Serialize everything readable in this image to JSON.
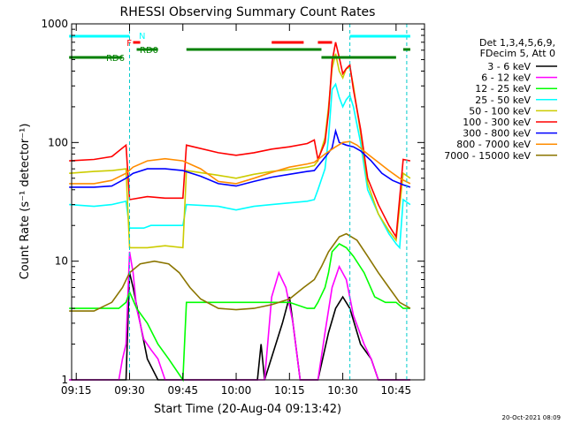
{
  "chart_data": {
    "type": "line",
    "title": "RHESSI Observing Summary Count Rates",
    "xlabel": "Start Time (20-Aug-04 09:13:42)",
    "ylabel": "Count Rate (s⁻¹ detector⁻¹)",
    "y_scale": "log",
    "ylim": [
      1,
      1000
    ],
    "xlim": [
      "09:13:42",
      "10:53:00"
    ],
    "x_ticks": [
      "09:15",
      "09:30",
      "09:45",
      "10:00",
      "10:15",
      "10:30",
      "10:45"
    ],
    "y_ticks": [
      "1",
      "10",
      "100",
      "1000"
    ],
    "footer_date": "20-Oct-2021 08:09",
    "legend_header": [
      "Det 1,3,4,5,6,9,",
      "FDecim 5, Att 0"
    ],
    "legend_position": "right",
    "series": [
      {
        "name": "3 - 6 keV",
        "color": "#000000",
        "points": [
          [
            "09:13",
            "1"
          ],
          [
            "09:29",
            "1"
          ],
          [
            "09:30",
            "8"
          ],
          [
            "09:31",
            "6"
          ],
          [
            "09:33",
            "3"
          ],
          [
            "09:35",
            "1.5"
          ],
          [
            "09:38",
            "1"
          ],
          [
            "10:06",
            "1"
          ],
          [
            "10:07",
            "2"
          ],
          [
            "10:08",
            "1"
          ],
          [
            "10:13",
            "3"
          ],
          [
            "10:15",
            "5"
          ],
          [
            "10:16",
            "3"
          ],
          [
            "10:18",
            "1"
          ],
          [
            "10:23",
            "1"
          ],
          [
            "10:26",
            "2.5"
          ],
          [
            "10:28",
            "4"
          ],
          [
            "10:30",
            "5"
          ],
          [
            "10:32",
            "4"
          ],
          [
            "10:35",
            "2"
          ],
          [
            "10:38",
            "1.5"
          ],
          [
            "10:40",
            "1"
          ],
          [
            "10:49",
            "1"
          ]
        ]
      },
      {
        "name": "6 - 12 keV",
        "color": "#ff00ff",
        "points": [
          [
            "09:13",
            "1"
          ],
          [
            "09:27",
            "1"
          ],
          [
            "09:28",
            "1.5"
          ],
          [
            "09:29",
            "2"
          ],
          [
            "09:30",
            "12"
          ],
          [
            "09:31",
            "8"
          ],
          [
            "09:32",
            "4"
          ],
          [
            "09:34",
            "2.2"
          ],
          [
            "09:36",
            "1.8"
          ],
          [
            "09:38",
            "1.5"
          ],
          [
            "09:40",
            "1"
          ],
          [
            "10:08",
            "1"
          ],
          [
            "10:10",
            "5"
          ],
          [
            "10:12",
            "8"
          ],
          [
            "10:14",
            "6"
          ],
          [
            "10:16",
            "3"
          ],
          [
            "10:18",
            "1"
          ],
          [
            "10:23",
            "1"
          ],
          [
            "10:25",
            "2.5"
          ],
          [
            "10:27",
            "6"
          ],
          [
            "10:29",
            "9"
          ],
          [
            "10:31",
            "7"
          ],
          [
            "10:33",
            "3.5"
          ],
          [
            "10:36",
            "2"
          ],
          [
            "10:38",
            "1.5"
          ],
          [
            "10:40",
            "1"
          ],
          [
            "10:49",
            "1"
          ]
        ]
      },
      {
        "name": "12 - 25 keV",
        "color": "#00ff00",
        "points": [
          [
            "09:13",
            "4"
          ],
          [
            "09:27",
            "4"
          ],
          [
            "09:29",
            "4.5"
          ],
          [
            "09:30",
            "5.5"
          ],
          [
            "09:32",
            "4"
          ],
          [
            "09:35",
            "3"
          ],
          [
            "09:38",
            "2"
          ],
          [
            "09:41",
            "1.5"
          ],
          [
            "09:45",
            "1"
          ],
          [
            "09:46",
            "4.5"
          ],
          [
            "10:05",
            "4.5"
          ],
          [
            "10:15",
            "4.5"
          ],
          [
            "10:20",
            "4"
          ],
          [
            "10:22",
            "4"
          ],
          [
            "10:23",
            "4.5"
          ],
          [
            "10:25",
            "6"
          ],
          [
            "10:26",
            "8"
          ],
          [
            "10:27",
            "12"
          ],
          [
            "10:29",
            "14"
          ],
          [
            "10:31",
            "13"
          ],
          [
            "10:33",
            "11"
          ],
          [
            "10:36",
            "8"
          ],
          [
            "10:39",
            "5"
          ],
          [
            "10:42",
            "4.5"
          ],
          [
            "10:45",
            "4.5"
          ],
          [
            "10:47",
            "4"
          ],
          [
            "10:49",
            "4"
          ]
        ]
      },
      {
        "name": "25 - 50 keV",
        "color": "#00ffff",
        "points": [
          [
            "09:13",
            "30"
          ],
          [
            "09:20",
            "29"
          ],
          [
            "09:25",
            "30"
          ],
          [
            "09:29",
            "32"
          ],
          [
            "09:30",
            "19"
          ],
          [
            "09:34",
            "19"
          ],
          [
            "09:36",
            "20"
          ],
          [
            "09:45",
            "20"
          ],
          [
            "09:46",
            "30"
          ],
          [
            "09:55",
            "29"
          ],
          [
            "10:00",
            "27"
          ],
          [
            "10:05",
            "29"
          ],
          [
            "10:10",
            "30"
          ],
          [
            "10:15",
            "31"
          ],
          [
            "10:20",
            "32"
          ],
          [
            "10:22",
            "33"
          ],
          [
            "10:23",
            "40"
          ],
          [
            "10:25",
            "60"
          ],
          [
            "10:26",
            "110"
          ],
          [
            "10:27",
            "280"
          ],
          [
            "10:28",
            "310"
          ],
          [
            "10:29",
            "240"
          ],
          [
            "10:30",
            "200"
          ],
          [
            "10:31",
            "230"
          ],
          [
            "10:32",
            "250"
          ],
          [
            "10:33",
            "200"
          ],
          [
            "10:35",
            "100"
          ],
          [
            "10:37",
            "40"
          ],
          [
            "10:40",
            "25"
          ],
          [
            "10:43",
            "17"
          ],
          [
            "10:45",
            "14"
          ],
          [
            "10:46",
            "13"
          ],
          [
            "10:47",
            "33"
          ],
          [
            "10:49",
            "30"
          ]
        ]
      },
      {
        "name": "50 - 100 keV",
        "color": "#cccc00",
        "points": [
          [
            "09:13",
            "55"
          ],
          [
            "09:20",
            "57"
          ],
          [
            "09:25",
            "58"
          ],
          [
            "09:29",
            "60"
          ],
          [
            "09:30",
            "13"
          ],
          [
            "09:35",
            "13"
          ],
          [
            "09:40",
            "13.5"
          ],
          [
            "09:45",
            "13"
          ],
          [
            "09:46",
            "58"
          ],
          [
            "09:55",
            "53"
          ],
          [
            "10:00",
            "50"
          ],
          [
            "10:05",
            "54"
          ],
          [
            "10:10",
            "57"
          ],
          [
            "10:15",
            "59"
          ],
          [
            "10:20",
            "62"
          ],
          [
            "10:22",
            "64"
          ],
          [
            "10:23",
            "70"
          ],
          [
            "10:25",
            "110"
          ],
          [
            "10:26",
            "200"
          ],
          [
            "10:27",
            "420"
          ],
          [
            "10:28",
            "560"
          ],
          [
            "10:29",
            "400"
          ],
          [
            "10:30",
            "350"
          ],
          [
            "10:31",
            "420"
          ],
          [
            "10:32",
            "430"
          ],
          [
            "10:33",
            "300"
          ],
          [
            "10:35",
            "120"
          ],
          [
            "10:37",
            "45"
          ],
          [
            "10:40",
            "25"
          ],
          [
            "10:43",
            "18"
          ],
          [
            "10:45",
            "15"
          ],
          [
            "10:47",
            "55"
          ],
          [
            "10:49",
            "50"
          ]
        ]
      },
      {
        "name": "100 - 300 keV",
        "color": "#ff0000",
        "points": [
          [
            "09:13",
            "70"
          ],
          [
            "09:20",
            "72"
          ],
          [
            "09:25",
            "76"
          ],
          [
            "09:29",
            "95"
          ],
          [
            "09:30",
            "33"
          ],
          [
            "09:35",
            "35"
          ],
          [
            "09:40",
            "34"
          ],
          [
            "09:45",
            "34"
          ],
          [
            "09:46",
            "95"
          ],
          [
            "09:55",
            "82"
          ],
          [
            "10:00",
            "78"
          ],
          [
            "10:05",
            "82"
          ],
          [
            "10:10",
            "88"
          ],
          [
            "10:15",
            "92"
          ],
          [
            "10:20",
            "98"
          ],
          [
            "10:22",
            "105"
          ],
          [
            "10:23",
            "72"
          ],
          [
            "10:25",
            "100"
          ],
          [
            "10:26",
            "180"
          ],
          [
            "10:27",
            "480"
          ],
          [
            "10:28",
            "700"
          ],
          [
            "10:29",
            "520"
          ],
          [
            "10:30",
            "380"
          ],
          [
            "10:31",
            "420"
          ],
          [
            "10:32",
            "450"
          ],
          [
            "10:33",
            "280"
          ],
          [
            "10:35",
            "130"
          ],
          [
            "10:37",
            "50"
          ],
          [
            "10:40",
            "30"
          ],
          [
            "10:43",
            "20"
          ],
          [
            "10:45",
            "16"
          ],
          [
            "10:47",
            "72"
          ],
          [
            "10:49",
            "70"
          ]
        ]
      },
      {
        "name": "300 - 800 keV",
        "color": "#0000ff",
        "points": [
          [
            "09:13",
            "42"
          ],
          [
            "09:20",
            "42"
          ],
          [
            "09:25",
            "43"
          ],
          [
            "09:29",
            "50"
          ],
          [
            "09:31",
            "55"
          ],
          [
            "09:35",
            "60"
          ],
          [
            "09:40",
            "60"
          ],
          [
            "09:45",
            "58"
          ],
          [
            "09:50",
            "52"
          ],
          [
            "09:55",
            "45"
          ],
          [
            "10:00",
            "43"
          ],
          [
            "10:05",
            "47"
          ],
          [
            "10:10",
            "51"
          ],
          [
            "10:15",
            "54"
          ],
          [
            "10:20",
            "57"
          ],
          [
            "10:22",
            "58"
          ],
          [
            "10:25",
            "75"
          ],
          [
            "10:27",
            "90"
          ],
          [
            "10:28",
            "125"
          ],
          [
            "10:29",
            "100"
          ],
          [
            "10:31",
            "95"
          ],
          [
            "10:33",
            "92"
          ],
          [
            "10:35",
            "85"
          ],
          [
            "10:38",
            "70"
          ],
          [
            "10:41",
            "55"
          ],
          [
            "10:44",
            "48"
          ],
          [
            "10:47",
            "44"
          ],
          [
            "10:49",
            "42"
          ]
        ]
      },
      {
        "name": "800 - 7000 keV",
        "color": "#ff8c00",
        "points": [
          [
            "09:13",
            "45"
          ],
          [
            "09:20",
            "45"
          ],
          [
            "09:25",
            "48"
          ],
          [
            "09:29",
            "55"
          ],
          [
            "09:31",
            "62"
          ],
          [
            "09:35",
            "70"
          ],
          [
            "09:40",
            "73"
          ],
          [
            "09:45",
            "70"
          ],
          [
            "09:50",
            "60"
          ],
          [
            "09:55",
            "47"
          ],
          [
            "10:00",
            "45"
          ],
          [
            "10:05",
            "50"
          ],
          [
            "10:10",
            "56"
          ],
          [
            "10:15",
            "62"
          ],
          [
            "10:20",
            "66"
          ],
          [
            "10:22",
            "68"
          ],
          [
            "10:25",
            "80"
          ],
          [
            "10:28",
            "92"
          ],
          [
            "10:30",
            "100"
          ],
          [
            "10:32",
            "102"
          ],
          [
            "10:34",
            "95"
          ],
          [
            "10:37",
            "80"
          ],
          [
            "10:40",
            "68"
          ],
          [
            "10:43",
            "58"
          ],
          [
            "10:46",
            "50"
          ],
          [
            "10:49",
            "45"
          ]
        ]
      },
      {
        "name": "7000 - 15000 keV",
        "color": "#8b7500",
        "points": [
          [
            "09:13",
            "3.8"
          ],
          [
            "09:20",
            "3.8"
          ],
          [
            "09:25",
            "4.5"
          ],
          [
            "09:28",
            "6"
          ],
          [
            "09:30",
            "8"
          ],
          [
            "09:33",
            "9.5"
          ],
          [
            "09:37",
            "10"
          ],
          [
            "09:41",
            "9.5"
          ],
          [
            "09:44",
            "8"
          ],
          [
            "09:47",
            "6"
          ],
          [
            "09:50",
            "4.8"
          ],
          [
            "09:55",
            "4"
          ],
          [
            "10:00",
            "3.9"
          ],
          [
            "10:05",
            "4"
          ],
          [
            "10:10",
            "4.3"
          ],
          [
            "10:15",
            "4.8"
          ],
          [
            "10:19",
            "6"
          ],
          [
            "10:22",
            "7"
          ],
          [
            "10:24",
            "9"
          ],
          [
            "10:26",
            "12"
          ],
          [
            "10:29",
            "16"
          ],
          [
            "10:31",
            "17"
          ],
          [
            "10:34",
            "15"
          ],
          [
            "10:37",
            "11"
          ],
          [
            "10:40",
            "8"
          ],
          [
            "10:43",
            "6"
          ],
          [
            "10:46",
            "4.5"
          ],
          [
            "10:49",
            "4"
          ]
        ]
      }
    ],
    "attenuator_bars": [
      {
        "label": "N",
        "color": "#00ffff",
        "segments": [
          [
            "09:13",
            "09:30"
          ],
          [
            "10:32",
            "10:49"
          ]
        ]
      },
      {
        "label": "F",
        "color": "#ff0000",
        "segments": [
          [
            "09:31",
            "09:33"
          ],
          [
            "10:10",
            "10:19"
          ],
          [
            "10:23",
            "10:27"
          ]
        ]
      },
      {
        "label": "RD0",
        "color": "#008000",
        "segments": [
          [
            "09:32",
            "09:38"
          ],
          [
            "09:46",
            "10:24"
          ],
          [
            "10:47",
            "10:49"
          ]
        ]
      },
      {
        "label": "RD6",
        "color": "#008000",
        "segments": [
          [
            "09:13",
            "09:28"
          ],
          [
            "10:24",
            "10:45"
          ]
        ]
      }
    ]
  }
}
